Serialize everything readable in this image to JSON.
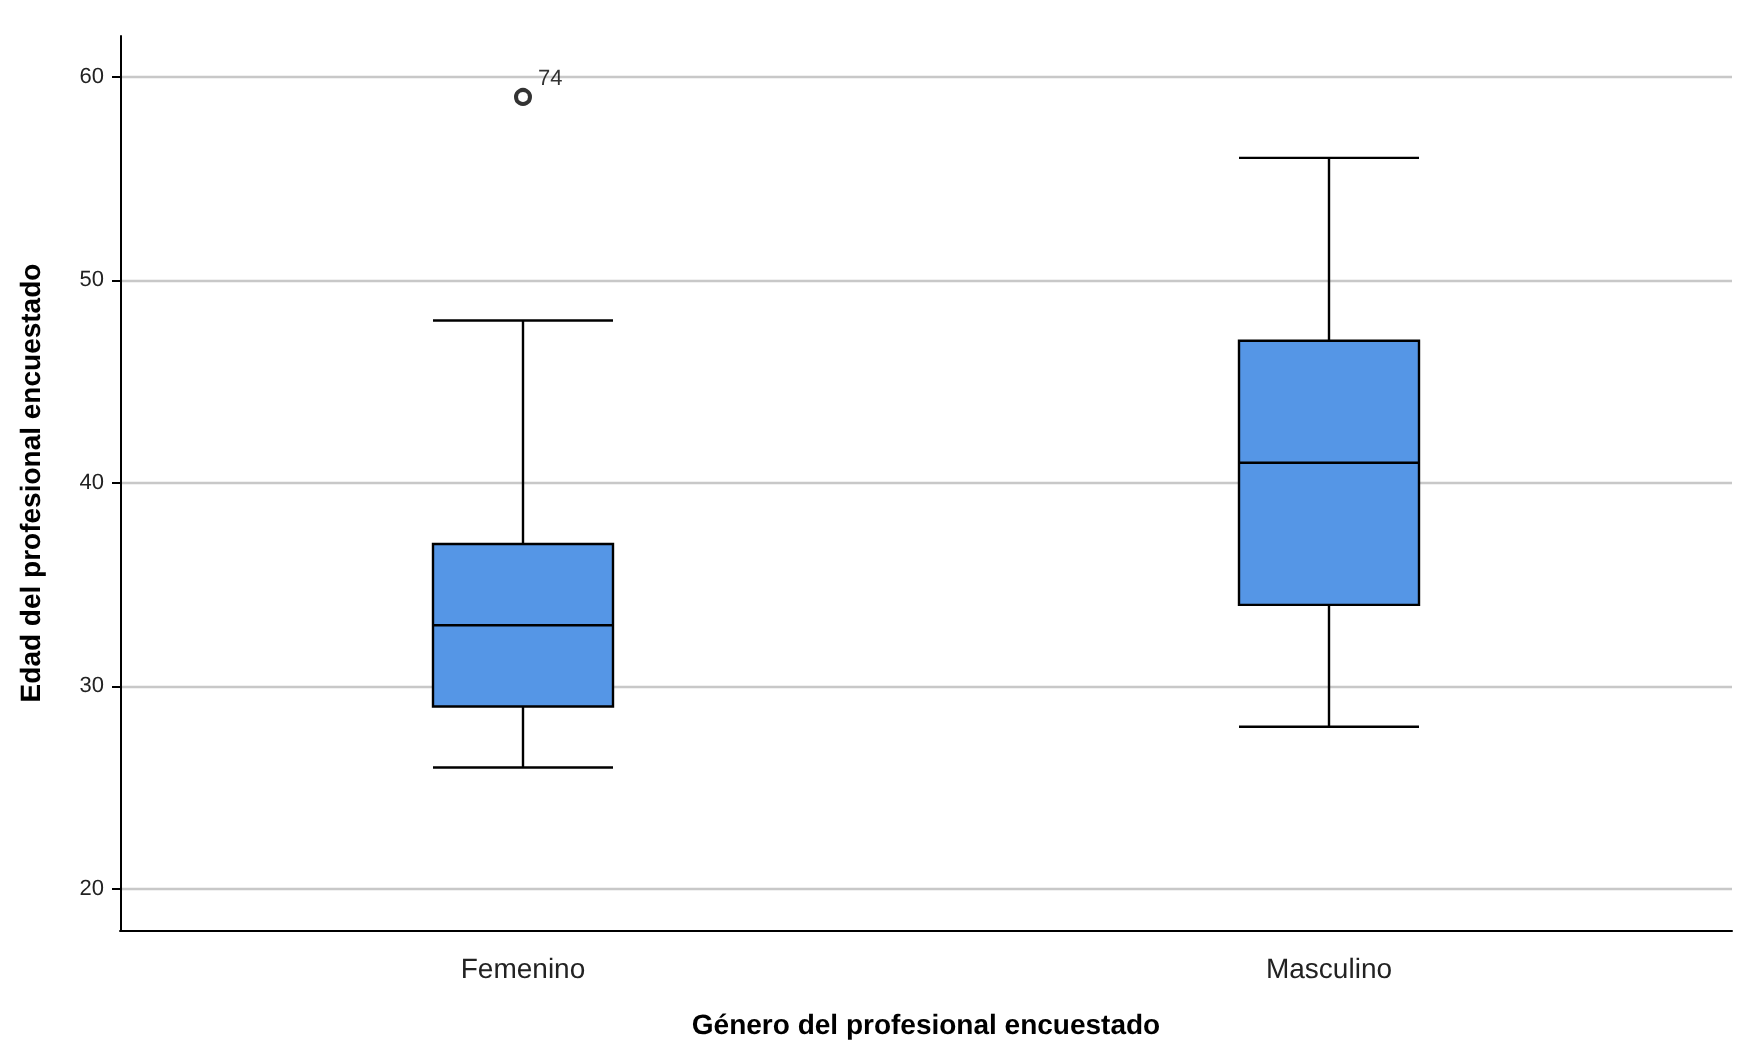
{
  "chart_data": {
    "type": "box",
    "xlabel": "Género del profesional encuestado",
    "ylabel": "Edad del profesional encuestado",
    "categories": [
      "Femenino",
      "Masculino"
    ],
    "series": [
      {
        "color": "#5596e6",
        "boxes": [
          {
            "low": 26,
            "q1": 29,
            "median": 33,
            "q3": 37,
            "high": 48,
            "outliers": [
              59
            ]
          },
          {
            "low": 28,
            "q1": 34,
            "median": 41,
            "q3": 47,
            "high": 56
          }
        ]
      }
    ],
    "ylim": [
      18,
      62
    ],
    "yticks": [
      20,
      30,
      40,
      50,
      60
    ],
    "grid": "y",
    "annotations": [
      "74"
    ]
  }
}
